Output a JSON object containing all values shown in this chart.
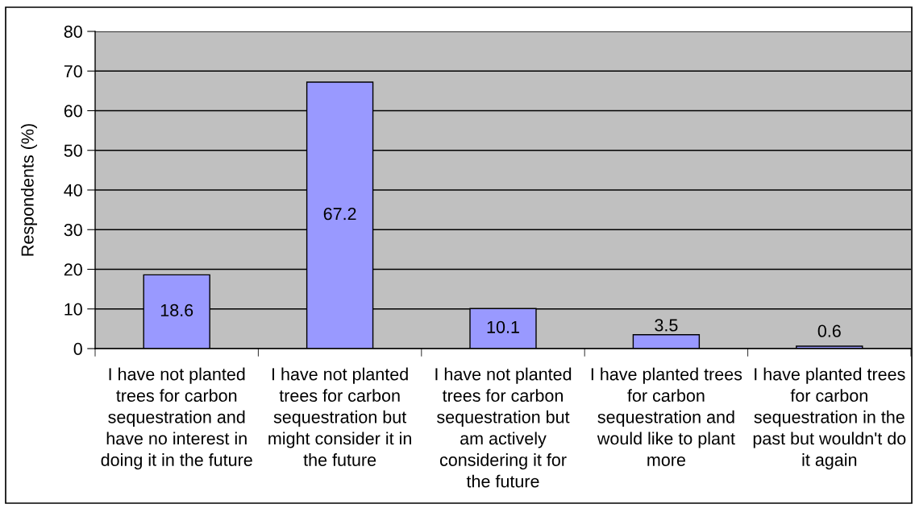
{
  "chart_data": {
    "type": "bar",
    "ylabel": "Respondents (%)",
    "categories": [
      "I have not planted trees for carbon sequestration and have no interest in doing it in the future",
      "I have not planted trees for carbon sequestration but might consider it in the future",
      "I have not planted trees for carbon sequestration but am actively considering it for the future",
      "I have planted trees for carbon sequestration and would like to plant more",
      "I have planted trees for carbon sequestration in the past but wouldn't do it again"
    ],
    "values": [
      18.6,
      67.2,
      10.1,
      3.5,
      0.6
    ],
    "color": "#9999ff",
    "ylim": [
      0,
      80
    ],
    "yticks": [
      0,
      10,
      20,
      30,
      40,
      50,
      60,
      70,
      80
    ],
    "grid": "y",
    "data_labels": true
  }
}
